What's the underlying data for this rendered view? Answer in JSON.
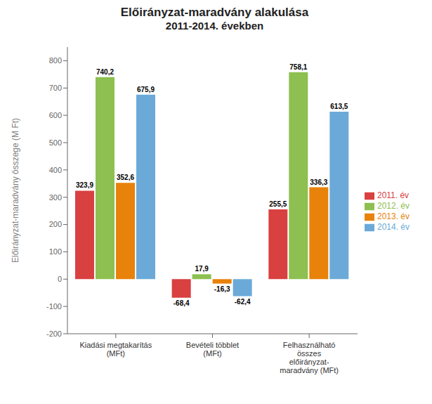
{
  "chart_data": {
    "type": "bar",
    "title": "Előirányzat-maradvány alakulása",
    "subtitle": "2011-2014. években",
    "ylabel": "Előirányzat-maradvány összege (M Ft)",
    "categories": [
      "Kiadási megtakarítás\n(MFt)",
      "Bevételi többlet\n(MFt)",
      "Felhasználható\nösszes\nelőirányzat-\nmaradvány (MFt)"
    ],
    "series": [
      {
        "name": "2011. év",
        "color": "#D94040",
        "values": [
          323.9,
          -68.4,
          255.5
        ],
        "value_labels": [
          "323,9",
          "-68,4",
          "255,5"
        ]
      },
      {
        "name": "2012. év",
        "color": "#8DC050",
        "values": [
          740.2,
          17.9,
          758.1
        ],
        "value_labels": [
          "740,2",
          "17,9",
          "758,1"
        ]
      },
      {
        "name": "2013. év",
        "color": "#E8820A",
        "values": [
          352.6,
          -16.3,
          336.3
        ],
        "value_labels": [
          "352,6",
          "-16,3",
          "336,3"
        ]
      },
      {
        "name": "2014. év",
        "color": "#6BAAD8",
        "values": [
          675.9,
          -62.4,
          613.5
        ],
        "value_labels": [
          "675,9",
          "-62,4",
          "613,5"
        ]
      }
    ],
    "ylim": [
      -200,
      850
    ],
    "yticks": [
      -200,
      -100,
      0,
      100,
      200,
      300,
      400,
      500,
      600,
      700,
      800
    ],
    "grid": false,
    "legend": "right",
    "data_labels": true
  }
}
